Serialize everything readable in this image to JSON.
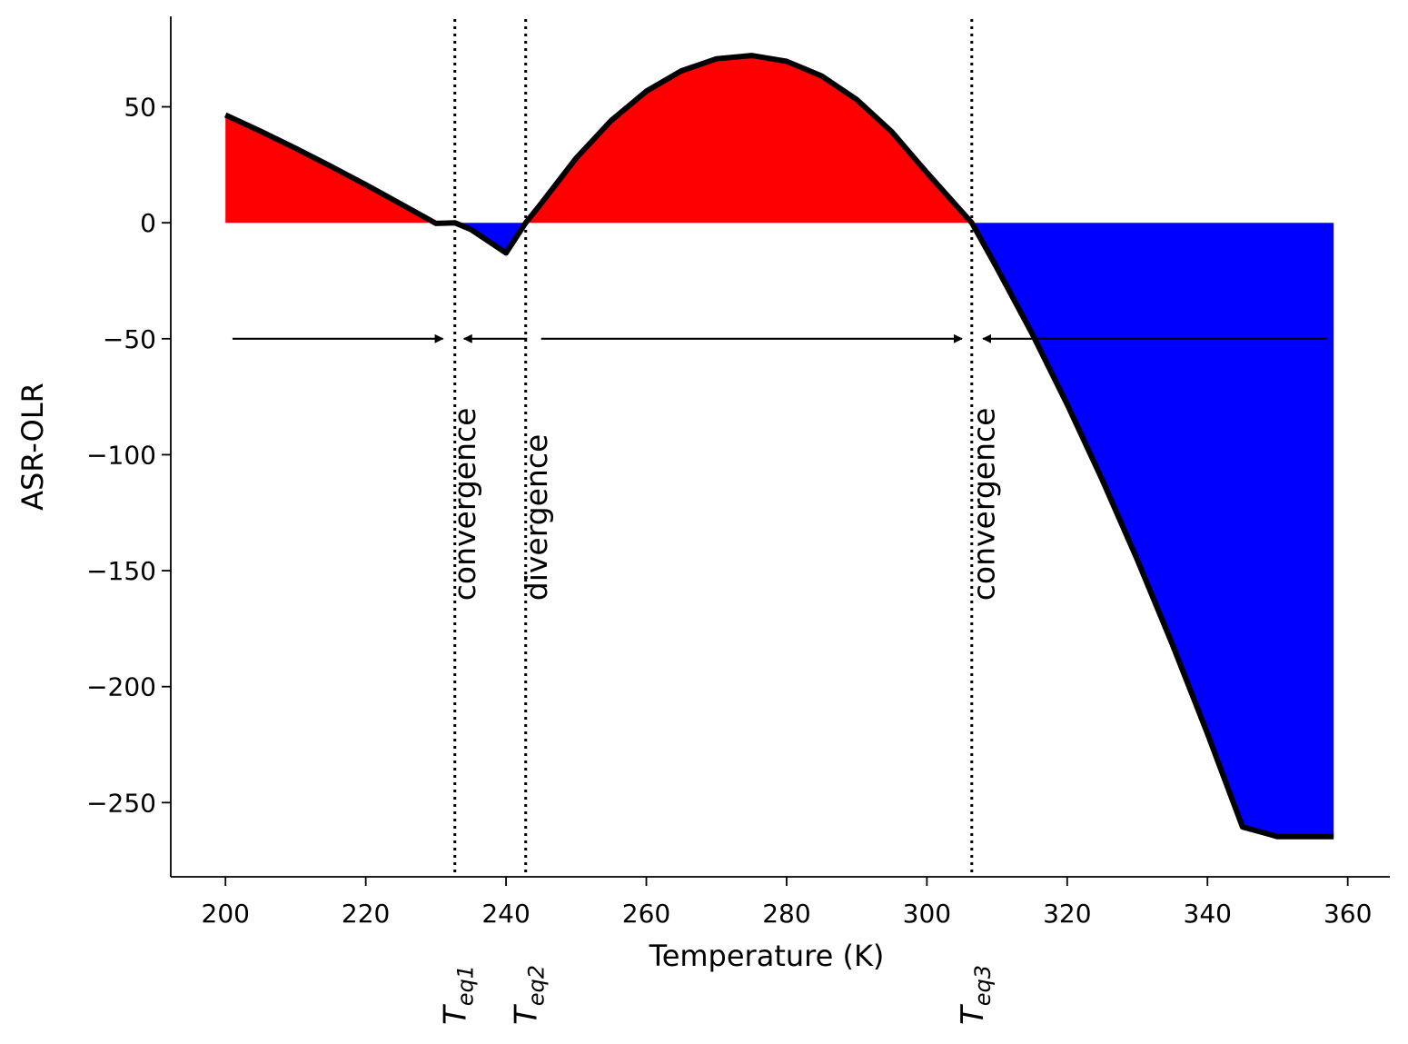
{
  "chart_data": {
    "type": "area",
    "title": "",
    "xlabel": "Temperature (K)",
    "ylabel": "ASR-OLR",
    "xlim": [
      192.2,
      366
    ],
    "ylim": [
      -282,
      89
    ],
    "xticks": [
      200,
      220,
      240,
      260,
      280,
      300,
      320,
      340,
      360
    ],
    "yticks": [
      50,
      0,
      -50,
      -100,
      -150,
      -200,
      -250
    ],
    "ytick_labels": [
      "50",
      "0",
      "−50",
      "−100",
      "−150",
      "−200",
      "−250"
    ],
    "grid": false,
    "curve": {
      "color": "#000000",
      "x": [
        200,
        205,
        210,
        215,
        220,
        225,
        230,
        232.7,
        235,
        240,
        242.8,
        245,
        250,
        255,
        260,
        265,
        270,
        275,
        280,
        285,
        290,
        295,
        300,
        306.4,
        310,
        315,
        320,
        325,
        330,
        335,
        340,
        345,
        350,
        355,
        358
      ],
      "y": [
        46.5,
        39.5,
        32.1,
        24.4,
        16.4,
        8.1,
        -0.3,
        0,
        -2.9,
        -13,
        0,
        8.3,
        27.9,
        44.1,
        56.7,
        65.5,
        70.7,
        72.1,
        69.6,
        63.3,
        53.1,
        39.2,
        21.6,
        0,
        -19.6,
        -47.8,
        -78.3,
        -110.8,
        -145.3,
        -181.8,
        -220.2,
        -260.5,
        -264.7,
        -264.7,
        -264.7
      ]
    },
    "fill_positive_color": "#ff0000",
    "fill_negative_color": "#0000ff",
    "equilibria": [
      {
        "x": 232.7,
        "label_base": "T",
        "label_sub": "eq1"
      },
      {
        "x": 242.8,
        "label_base": "T",
        "label_sub": "eq2"
      },
      {
        "x": 306.4,
        "label_base": "T",
        "label_sub": "eq3"
      }
    ],
    "arrows": [
      {
        "y": -50,
        "x_from": 201,
        "x_to": 231
      },
      {
        "y": -50,
        "x_from": 243,
        "x_to": 234
      },
      {
        "y": -50,
        "x_from": 245,
        "x_to": 305
      },
      {
        "y": -50,
        "x_from": 357,
        "x_to": 308
      }
    ],
    "annotations": [
      {
        "text": "convergence",
        "x": 235.6,
        "y": -163
      },
      {
        "text": "divergence",
        "x": 245.8,
        "y": -163
      },
      {
        "text": "convergence",
        "x": 309.6,
        "y": -163
      }
    ]
  }
}
